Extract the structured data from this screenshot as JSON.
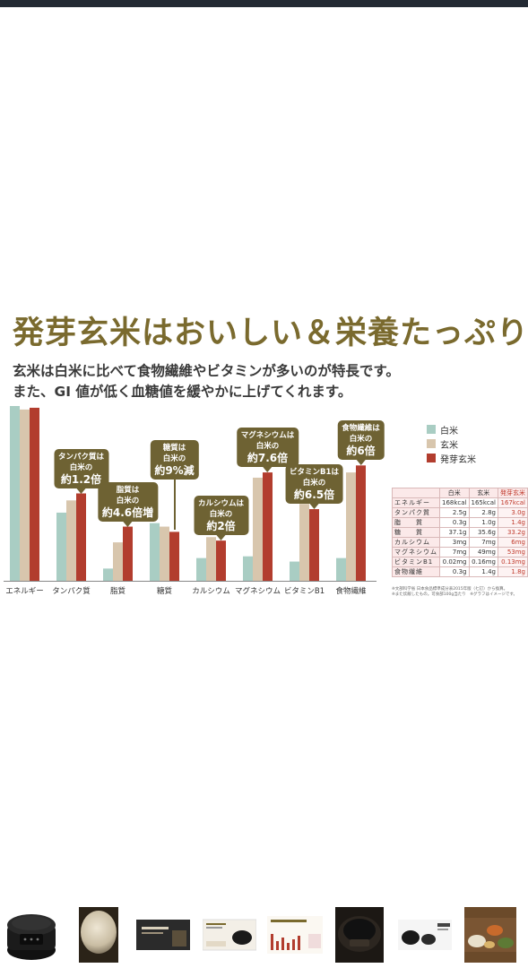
{
  "headline": "発芽玄米はおいしい＆栄養たっぷり",
  "subtitle_line1": "玄米は白米に比べて食物繊維やビタミンが多いのが特長です。",
  "subtitle_line2": "また、GI 値が低く血糖値を緩やかに上げてくれます。",
  "colors": {
    "white_rice": "#a9cdc3",
    "brown_rice": "#d8c6ad",
    "germinated": "#b23d2e",
    "callout": "#6e6233",
    "headline": "#7a6a2e"
  },
  "chart_data": {
    "type": "bar",
    "categories": [
      "エネルギー",
      "タンパク質",
      "脂質",
      "糖質",
      "カルシウム",
      "マグネシウム",
      "ビタミンB1",
      "食物繊維"
    ],
    "series": [
      {
        "name": "白米",
        "values": [
          100,
          39,
          7,
          33,
          13,
          14,
          11,
          13
        ]
      },
      {
        "name": "玄米",
        "values": [
          98,
          46,
          22,
          31,
          25,
          59,
          44,
          62
        ]
      },
      {
        "name": "発芽玄米",
        "values": [
          99,
          50,
          31,
          28,
          23,
          62,
          41,
          66
        ]
      }
    ],
    "ylim": [
      0,
      100
    ],
    "legend_position": "right",
    "callouts": [
      {
        "category": "タンパク質",
        "line1": "タンパク質は",
        "line2": "白米の",
        "line3": "約1.2倍"
      },
      {
        "category": "脂質",
        "line1": "脂質は",
        "line2": "白米の",
        "line3": "約4.6倍増"
      },
      {
        "category": "糖質",
        "line1": "糖質は",
        "line2": "白米の",
        "line3": "約9%減"
      },
      {
        "category": "カルシウム",
        "line1": "カルシウムは",
        "line2": "白米の",
        "line3": "約2倍"
      },
      {
        "category": "マグネシウム",
        "line1": "マグネシウムは",
        "line2": "白米の",
        "line3": "約7.6倍"
      },
      {
        "category": "ビタミンB1",
        "line1": "ビタミンB1は",
        "line2": "白米の",
        "line3": "約6.5倍"
      },
      {
        "category": "食物繊維",
        "line1": "食物繊維は",
        "line2": "白米の",
        "line3": "約6倍"
      }
    ]
  },
  "nutrition_table": {
    "headers": [
      "",
      "白米",
      "玄米",
      "発芽玄米"
    ],
    "rows": [
      [
        "エネルギー",
        "168kcal",
        "165kcal",
        "167kcal"
      ],
      [
        "タンパク質",
        "2.5g",
        "2.8g",
        "3.0g"
      ],
      [
        "脂　　質",
        "0.3g",
        "1.0g",
        "1.4g"
      ],
      [
        "糖　　質",
        "37.1g",
        "35.6g",
        "33.2g"
      ],
      [
        "カルシウム",
        "3mg",
        "7mg",
        "6mg"
      ],
      [
        "マグネシウム",
        "7mg",
        "49mg",
        "53mg"
      ],
      [
        "ビタミンB1",
        "0.02mg",
        "0.16mg",
        "0.13mg"
      ],
      [
        "食物繊維",
        "0.3g",
        "1.4g",
        "1.8g"
      ]
    ],
    "note1": "※文部科学省 日本食品標準成分表2015年版（七訂）から換算。",
    "note2": "※また炊飯したもの。可食部100g当たり　※グラフはイメージです。"
  },
  "thumbnails": [
    {
      "name": "rice-cooker-black-icon"
    },
    {
      "name": "rice-bowl-photo"
    },
    {
      "name": "banner-thumb"
    },
    {
      "name": "product-card-thumb"
    },
    {
      "name": "chart-thumb"
    },
    {
      "name": "cooker-top-view-thumb"
    },
    {
      "name": "cooker-lineup-thumb"
    },
    {
      "name": "meal-photo-thumb"
    }
  ]
}
